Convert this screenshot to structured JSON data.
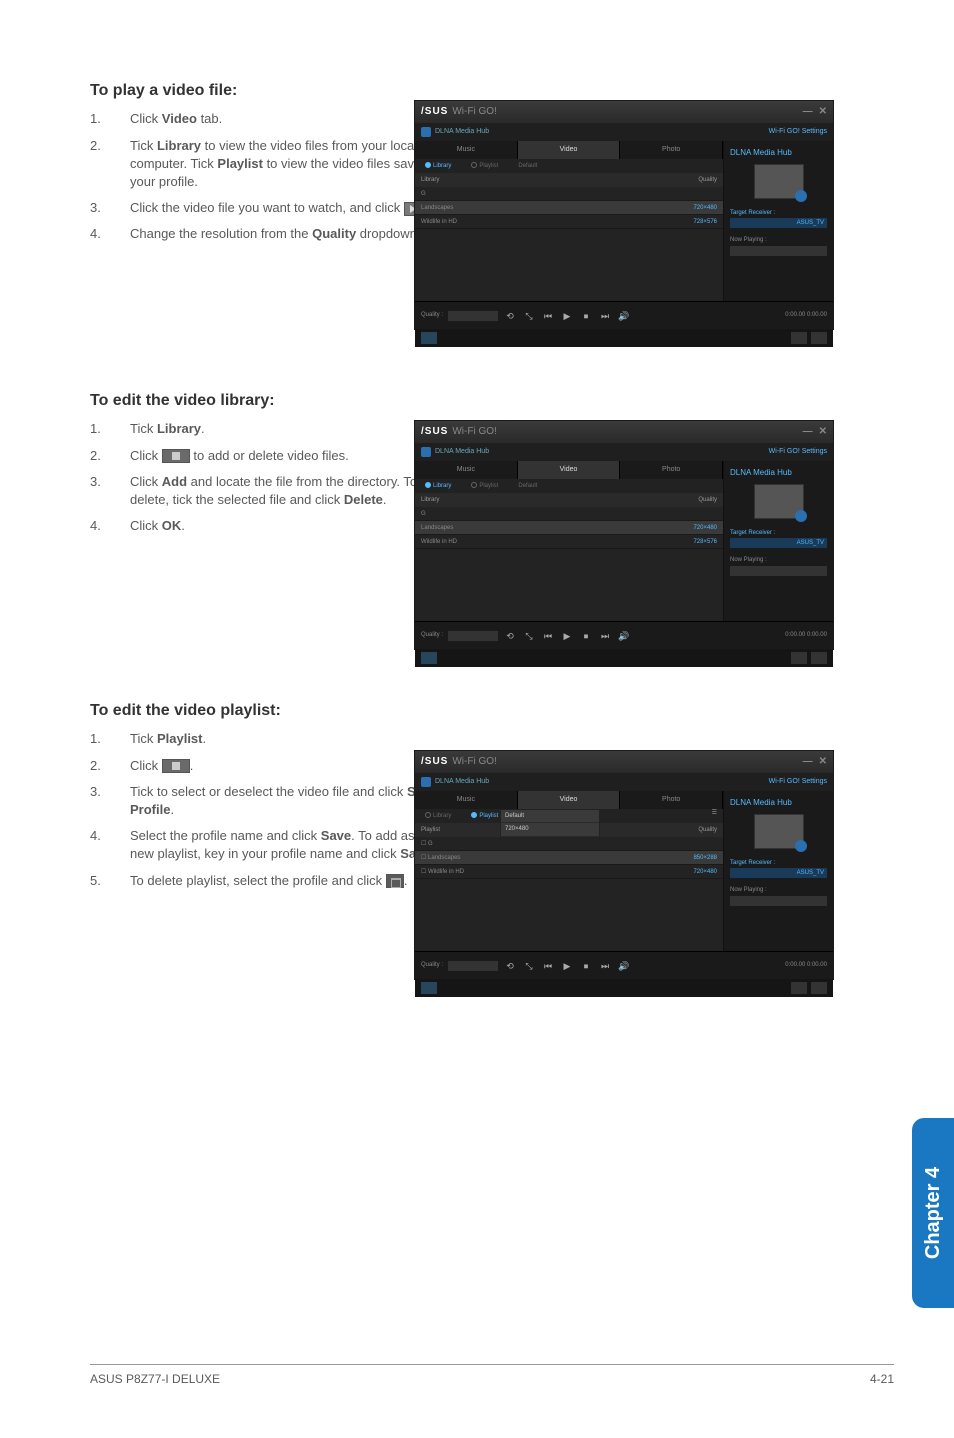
{
  "sections": {
    "play": {
      "heading": "To play a video file:",
      "steps": [
        {
          "n": "1.",
          "html": "Click <b>Video</b> tab."
        },
        {
          "n": "2.",
          "html": "Tick <b>Library</b> to view the video files from your local computer. Tick <b>Playlist</b> to view the video files saved in your profile."
        },
        {
          "n": "3.",
          "html": "Click the video file you want to watch, and click <span class='inline-icon play' data-name='play-icon' data-interactable='false'></span>."
        },
        {
          "n": "4.",
          "html": "Change the resolution from the <b>Quality</b> dropdown list."
        }
      ]
    },
    "editLibrary": {
      "heading": "To edit the video library:",
      "steps": [
        {
          "n": "1.",
          "html": "Tick <b>Library</b>."
        },
        {
          "n": "2.",
          "html": "Click <span class='inline-icon edit' data-name='editlist-icon' data-interactable='false'></span> to add or delete video files."
        },
        {
          "n": "3.",
          "html": "Click <b>Add</b> and locate the file from the directory. To delete, tick the selected file and click <b>Delete</b>."
        },
        {
          "n": "4.",
          "html": "Click <b>OK</b>."
        }
      ]
    },
    "editPlaylist": {
      "heading": "To edit the video playlist:",
      "steps": [
        {
          "n": "1.",
          "html": "Tick <b>Playlist</b>."
        },
        {
          "n": "2.",
          "html": "Click <span class='inline-icon edit' data-name='editlist-icon' data-interactable='false'></span>."
        },
        {
          "n": "3.",
          "html": "Tick to select or deselect the video file and click <b>Save Profile</b>."
        },
        {
          "n": "4.",
          "html": "Select the profile name and click <b>Save</b>. To add as a new playlist, key in your profile name and click <b>Save</b>."
        },
        {
          "n": "5.",
          "html": "To delete playlist, select the profile and click <span class='inline-icon trash' data-name='trash-icon' data-interactable='false'></span>."
        }
      ]
    }
  },
  "app": {
    "brand_a": "/SUS",
    "brand_b": "Wi-Fi GO!",
    "subbar": "DLNA Media Hub",
    "right_link": "Wi-Fi GO! Settings",
    "right_title": "DLNA Media Hub",
    "tabs": [
      "Music",
      "Video",
      "Photo"
    ],
    "subtabs_lib": [
      "Library",
      "Playlist",
      "Default"
    ],
    "cols": [
      "Library",
      "Quality"
    ],
    "rows": [
      {
        "name": "G",
        "q": ""
      },
      {
        "name": "Landscapes",
        "q": "720×480"
      },
      {
        "name": "Wildlife in HD",
        "q": "728×576"
      }
    ],
    "quality_label": "Quality :",
    "target_label": "Target Receiver :",
    "target_value": "ASUS_TV",
    "nowplay": "Now Playing :",
    "controls": [
      "⟲",
      "⤡",
      "⏮",
      "▶",
      "⏹",
      "⏭",
      "🔊"
    ],
    "time": "0:00.00\n0:00.00",
    "dropdown": [
      "Default",
      "720×480"
    ]
  },
  "chapter": "Chapter 4",
  "footer": {
    "left": "ASUS P8Z77-I DELUXE",
    "right": "4-21"
  },
  "colors": {
    "accent": "#1a78c2",
    "ss_bg": "#2b2b2b",
    "link": "#5bbff0"
  }
}
